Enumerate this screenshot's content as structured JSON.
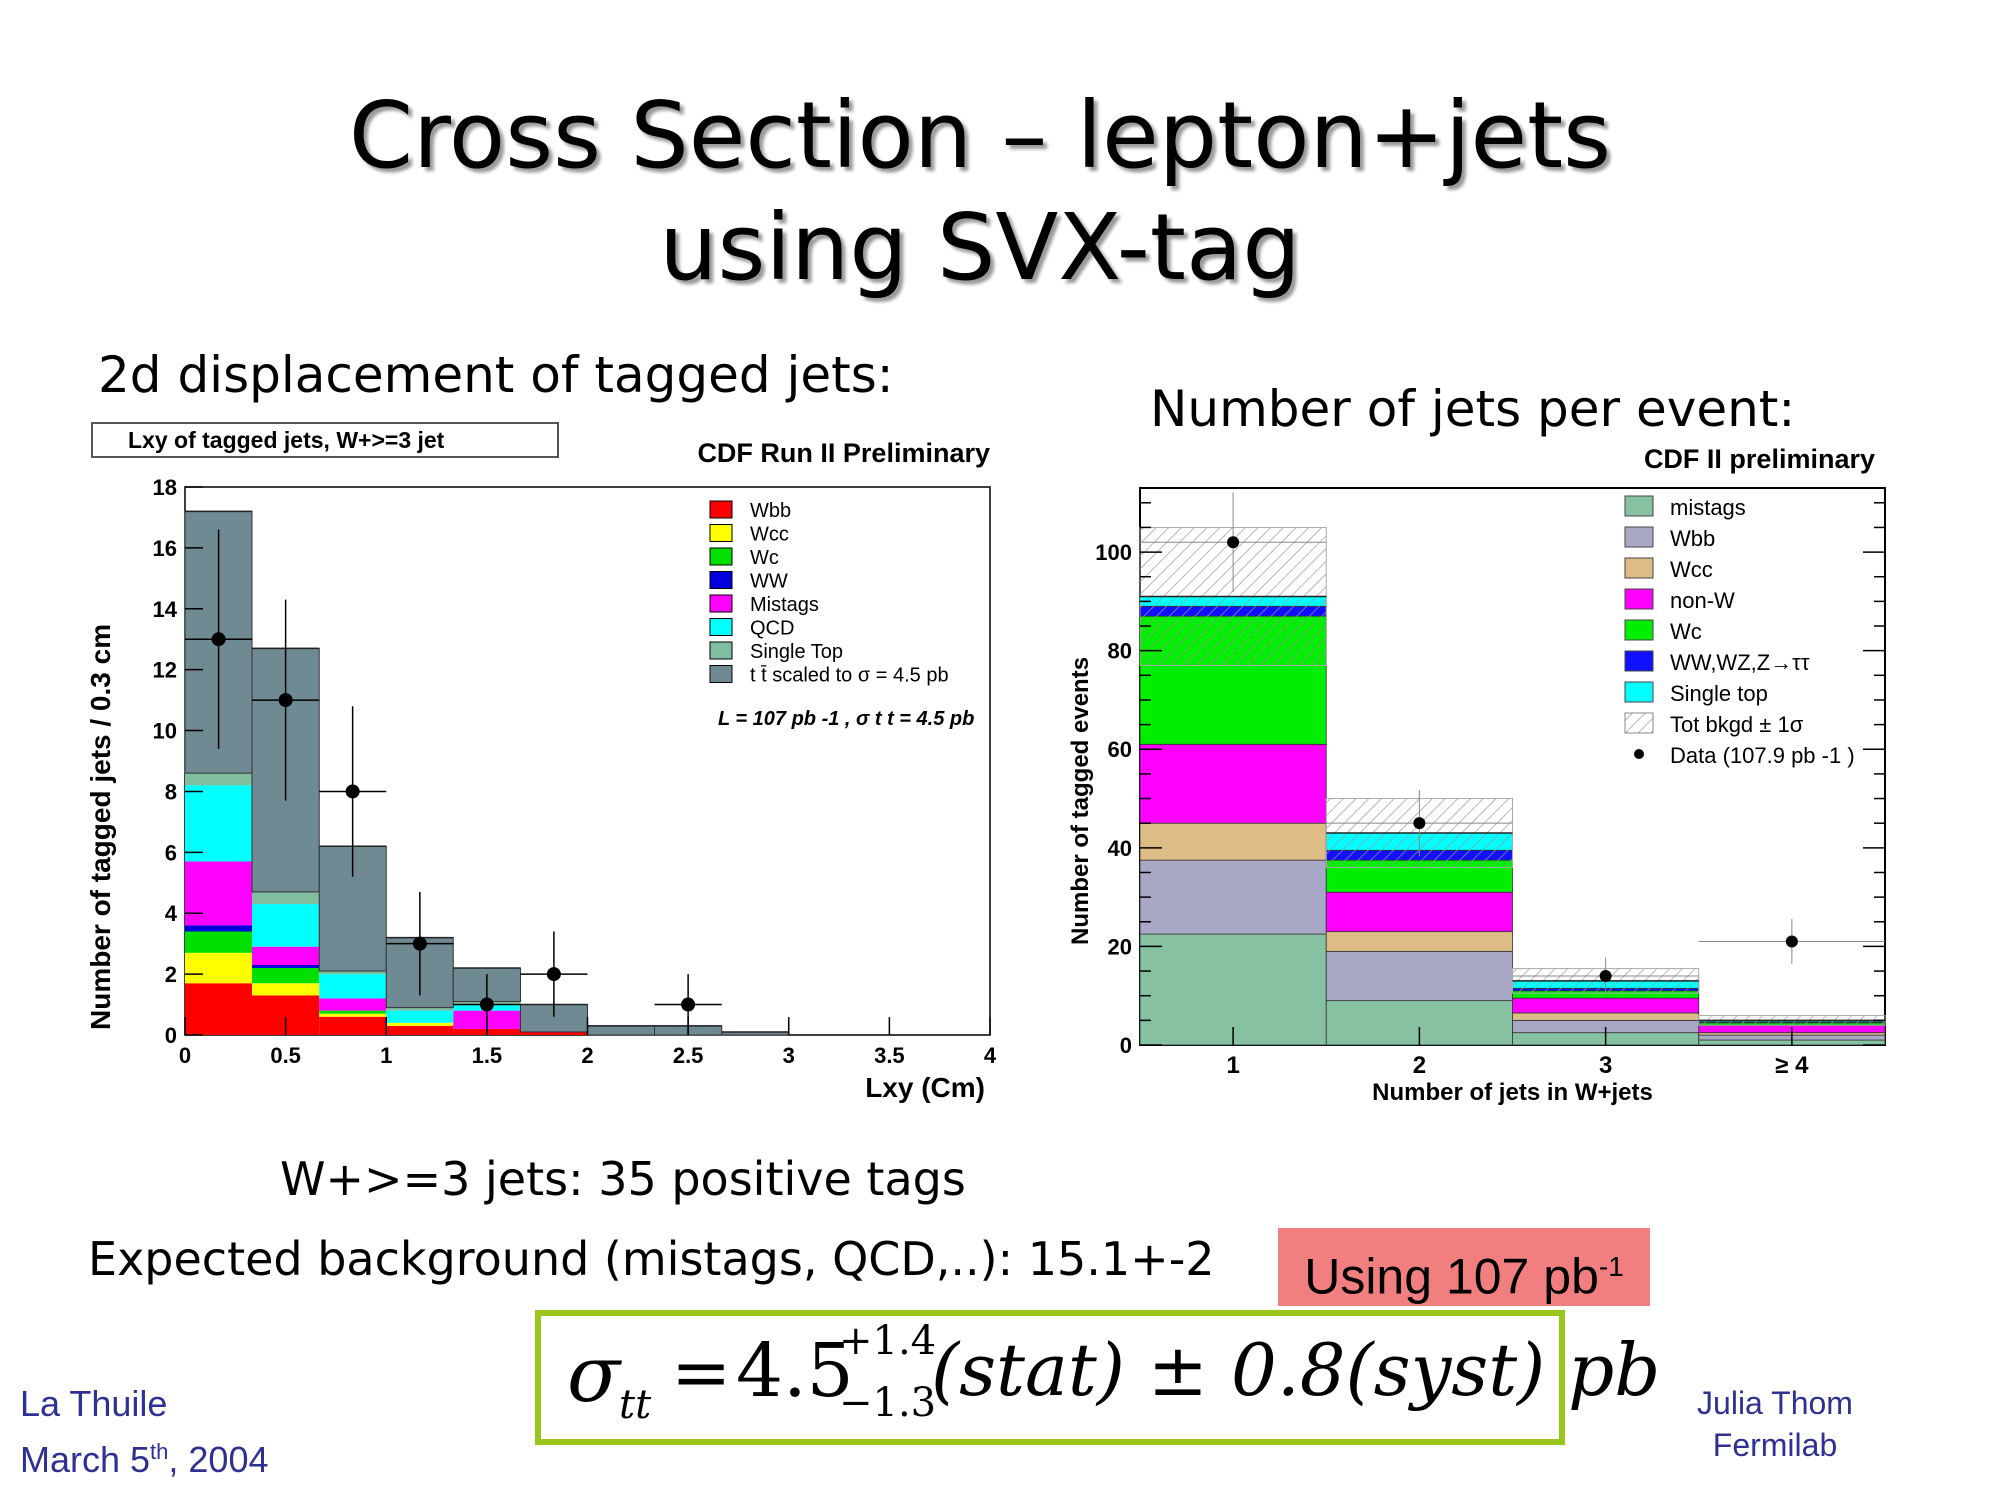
{
  "slide": {
    "title_line1": "Cross Section – lepton+jets",
    "title_line2": "using SVX-tag",
    "left_heading": "2d displacement of tagged jets:",
    "right_heading": "Number of jets per event:",
    "tags_text": "W+>=3 jets: 35 positive tags",
    "background_text": "Expected background (mistags, QCD,..): 15.1+-2",
    "using_text": "Using 107 pb",
    "using_sup": "-1",
    "formula": {
      "sigma": "σ",
      "sub": "tt",
      "eq": "=",
      "value": "4.5",
      "sup_plus": "+1.4",
      "sub_minus": "−1.3",
      "rest": "(stat) ± 0.8(syst) pb"
    },
    "footer_left_line1": "La Thuile",
    "footer_left_month": "March 5",
    "footer_left_th": "th",
    "footer_left_year": ", 2004",
    "footer_right_line1": "Julia Thom",
    "footer_right_line2": "Fermilab",
    "colors": {
      "accent_border": "#9ac51d",
      "using_bg": "#f27f7f",
      "footer_text": "#2e3192"
    }
  },
  "chart_data": [
    {
      "type": "bar",
      "title": "CDF Run II Preliminary",
      "box_label": "Lxy of tagged jets, W+>=3 jet",
      "xlabel": "Lxy (Cm)",
      "ylabel": "Number of tagged jets / 0.3 cm",
      "xlim": [
        0,
        4
      ],
      "ylim": [
        0,
        18
      ],
      "xticks": [
        "0",
        "0.5",
        "1",
        "1.5",
        "2",
        "2.5",
        "3",
        "3.5",
        "4"
      ],
      "yticks": [
        "0",
        "2",
        "4",
        "6",
        "8",
        "10",
        "12",
        "14",
        "16",
        "18"
      ],
      "categories": [
        "0-0.33",
        "0.33-0.67",
        "0.67-1.0",
        "1.0-1.33",
        "1.33-1.67",
        "1.67-2.0",
        "2.0-2.33",
        "2.33-2.67",
        "2.67-3.0",
        "3.0-3.33",
        "3.33-3.67",
        "3.67-4.0"
      ],
      "bin_edges": [
        0,
        0.333,
        0.667,
        1.0,
        1.333,
        1.667,
        2.0,
        2.333,
        2.667,
        3.0,
        3.333,
        3.667,
        4.0
      ],
      "series": [
        {
          "name": "Wbb",
          "color": "#ff0000",
          "values": [
            1.7,
            1.3,
            0.6,
            0.3,
            0.2,
            0.1,
            0,
            0,
            0,
            0,
            0,
            0
          ]
        },
        {
          "name": "Wcc",
          "color": "#ffff00",
          "values": [
            1.0,
            0.4,
            0.1,
            0.1,
            0,
            0,
            0,
            0,
            0,
            0,
            0,
            0
          ]
        },
        {
          "name": "Wc",
          "color": "#00e000",
          "values": [
            0.7,
            0.5,
            0.1,
            0,
            0,
            0,
            0,
            0,
            0,
            0,
            0,
            0
          ]
        },
        {
          "name": "WW",
          "color": "#0000dd",
          "values": [
            0.2,
            0.1,
            0,
            0,
            0,
            0,
            0,
            0,
            0,
            0,
            0,
            0
          ]
        },
        {
          "name": "Mistags",
          "color": "#ff00ff",
          "values": [
            2.1,
            0.6,
            0.4,
            0,
            0.6,
            0,
            0,
            0,
            0,
            0,
            0,
            0
          ]
        },
        {
          "name": "QCD",
          "color": "#00ffff",
          "values": [
            2.5,
            1.4,
            0.8,
            0.4,
            0.2,
            0,
            0,
            0,
            0,
            0,
            0,
            0
          ]
        },
        {
          "name": "Single Top",
          "color": "#7fbfa0",
          "values": [
            0.4,
            0.4,
            0.1,
            0.1,
            0.1,
            0,
            0,
            0,
            0,
            0,
            0,
            0
          ]
        },
        {
          "name": "t t̄ scaled to  σ = 4.5 pb",
          "color": "#6f8a93",
          "values": [
            8.6,
            8.0,
            4.1,
            2.3,
            1.1,
            0.9,
            0.3,
            0.3,
            0.1,
            0,
            0,
            0
          ]
        }
      ],
      "data_points": {
        "x": [
          0.167,
          0.5,
          0.833,
          1.167,
          1.5,
          1.833,
          2.5
        ],
        "y": [
          13,
          11,
          8,
          3,
          1,
          2,
          1
        ],
        "yerr": [
          3.6,
          3.3,
          2.8,
          1.7,
          1.0,
          1.4,
          1.0
        ]
      },
      "legend": [
        "Wbb",
        "Wcc",
        "Wc",
        "WW",
        "Mistags",
        "QCD",
        "Single Top",
        "t t̄ scaled to  σ = 4.5 pb"
      ],
      "legend_position": "top-right",
      "lumi_label": "L = 107 pb -1 , σ t t = 4.5 pb"
    },
    {
      "type": "bar",
      "title": "CDF II preliminary",
      "xlabel": "Number of jets in W+jets",
      "ylabel": "Number of tagged events",
      "categories": [
        "1",
        "2",
        "3",
        "≥ 4"
      ],
      "ylim": [
        0,
        113
      ],
      "yticks": [
        "0",
        "20",
        "40",
        "60",
        "80",
        "100"
      ],
      "series": [
        {
          "name": "mistags",
          "color": "#86c1a2",
          "values": [
            22.5,
            9,
            2.5,
            1
          ]
        },
        {
          "name": "Wbb",
          "color": "#a9a7c6",
          "values": [
            15,
            10,
            2.5,
            1
          ]
        },
        {
          "name": "Wcc",
          "color": "#debc85",
          "values": [
            7.5,
            4,
            1.5,
            0.5
          ]
        },
        {
          "name": "non-W",
          "color": "#ff00ff",
          "values": [
            16,
            8,
            3,
            1.5
          ]
        },
        {
          "name": "Wc",
          "color": "#00ee00",
          "values": [
            26,
            6.5,
            1.5,
            0.5
          ]
        },
        {
          "name": "WW,WZ,Z→ττ",
          "color": "#1010ff",
          "values": [
            2,
            2,
            0.5,
            0.2
          ]
        },
        {
          "name": "Single top",
          "color": "#00ffff",
          "values": [
            2,
            3.5,
            1.5,
            0.3
          ]
        }
      ],
      "total_background_band": {
        "name": "Tot bkgd ± 1σ",
        "values": [
          91,
          43,
          13,
          5
        ],
        "err": [
          14,
          7,
          2.5,
          1
        ]
      },
      "data_points": {
        "name": "Data (107.9 pb -1 )",
        "values": [
          102,
          45,
          14,
          21
        ]
      },
      "legend": [
        "mistags",
        "Wbb",
        "Wcc",
        "non-W",
        "Wc",
        "WW,WZ,Z→ττ",
        "Single top",
        "Tot bkgd ± 1σ",
        "Data (107.9 pb -1 )"
      ],
      "legend_position": "top-right"
    }
  ]
}
